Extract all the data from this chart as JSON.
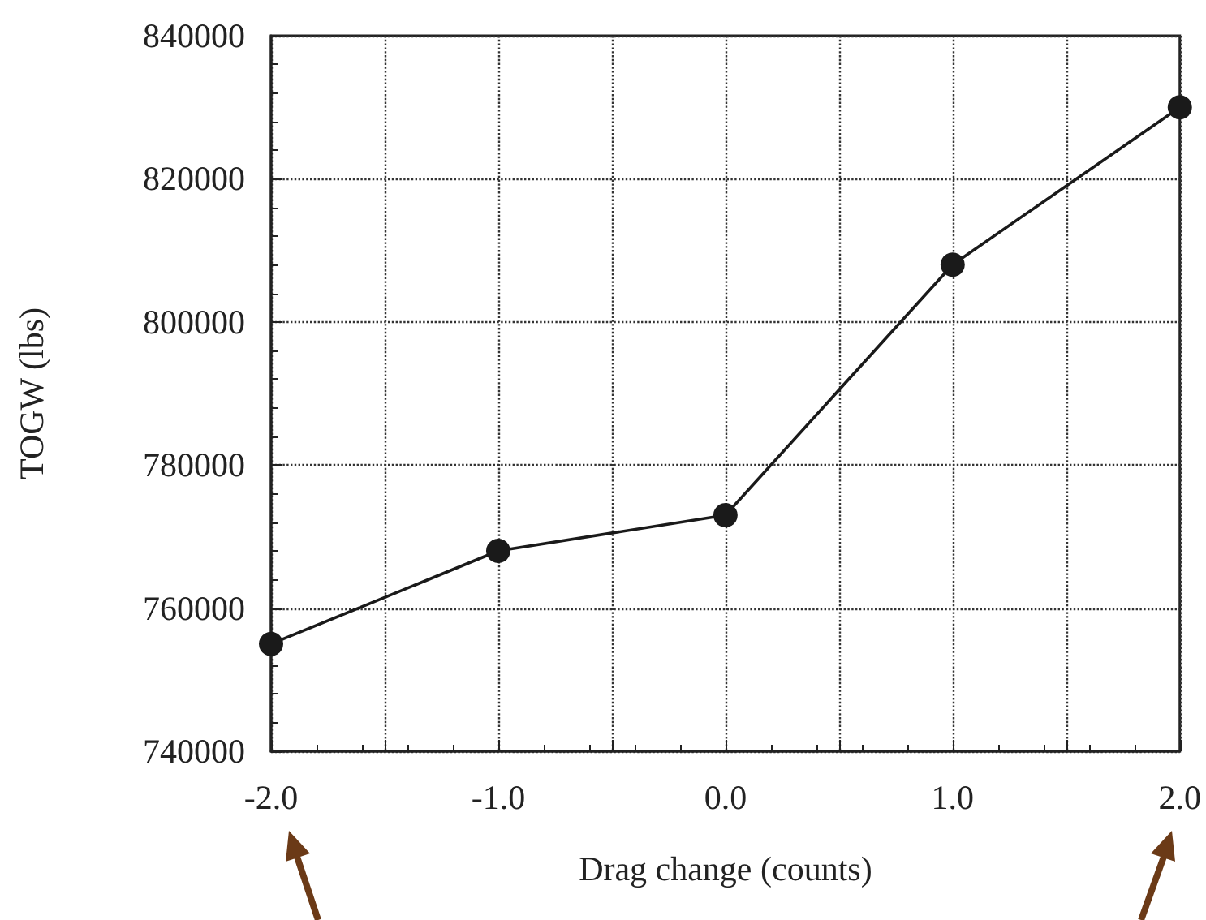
{
  "chart_data": {
    "type": "line",
    "xlabel": "Drag change (counts)",
    "ylabel": "TOGW (lbs)",
    "x": [
      -2.0,
      -1.0,
      0.0,
      1.0,
      2.0
    ],
    "series": [
      {
        "color": "#1a1a1a",
        "values": [
          755000,
          768000,
          773000,
          808000,
          830000
        ]
      }
    ],
    "xlim": [
      -2.0,
      2.0
    ],
    "xticks": [
      {
        "value": -2,
        "label": "-2.0"
      },
      {
        "value": -1.5,
        "label": null
      },
      {
        "value": -1,
        "label": "-1.0"
      },
      {
        "value": -0.5,
        "label": null
      },
      {
        "value": 0,
        "label": "0.0"
      },
      {
        "value": 0.5,
        "label": null
      },
      {
        "value": 1,
        "label": "1.0"
      },
      {
        "value": 1.5,
        "label": null
      },
      {
        "value": 2,
        "label": "2.0"
      }
    ],
    "ylim": [
      740000,
      840000
    ],
    "yticks": [
      740000,
      760000,
      780000,
      800000,
      820000,
      840000
    ],
    "grid": true,
    "marker": "circle",
    "line_style": "solid"
  }
}
